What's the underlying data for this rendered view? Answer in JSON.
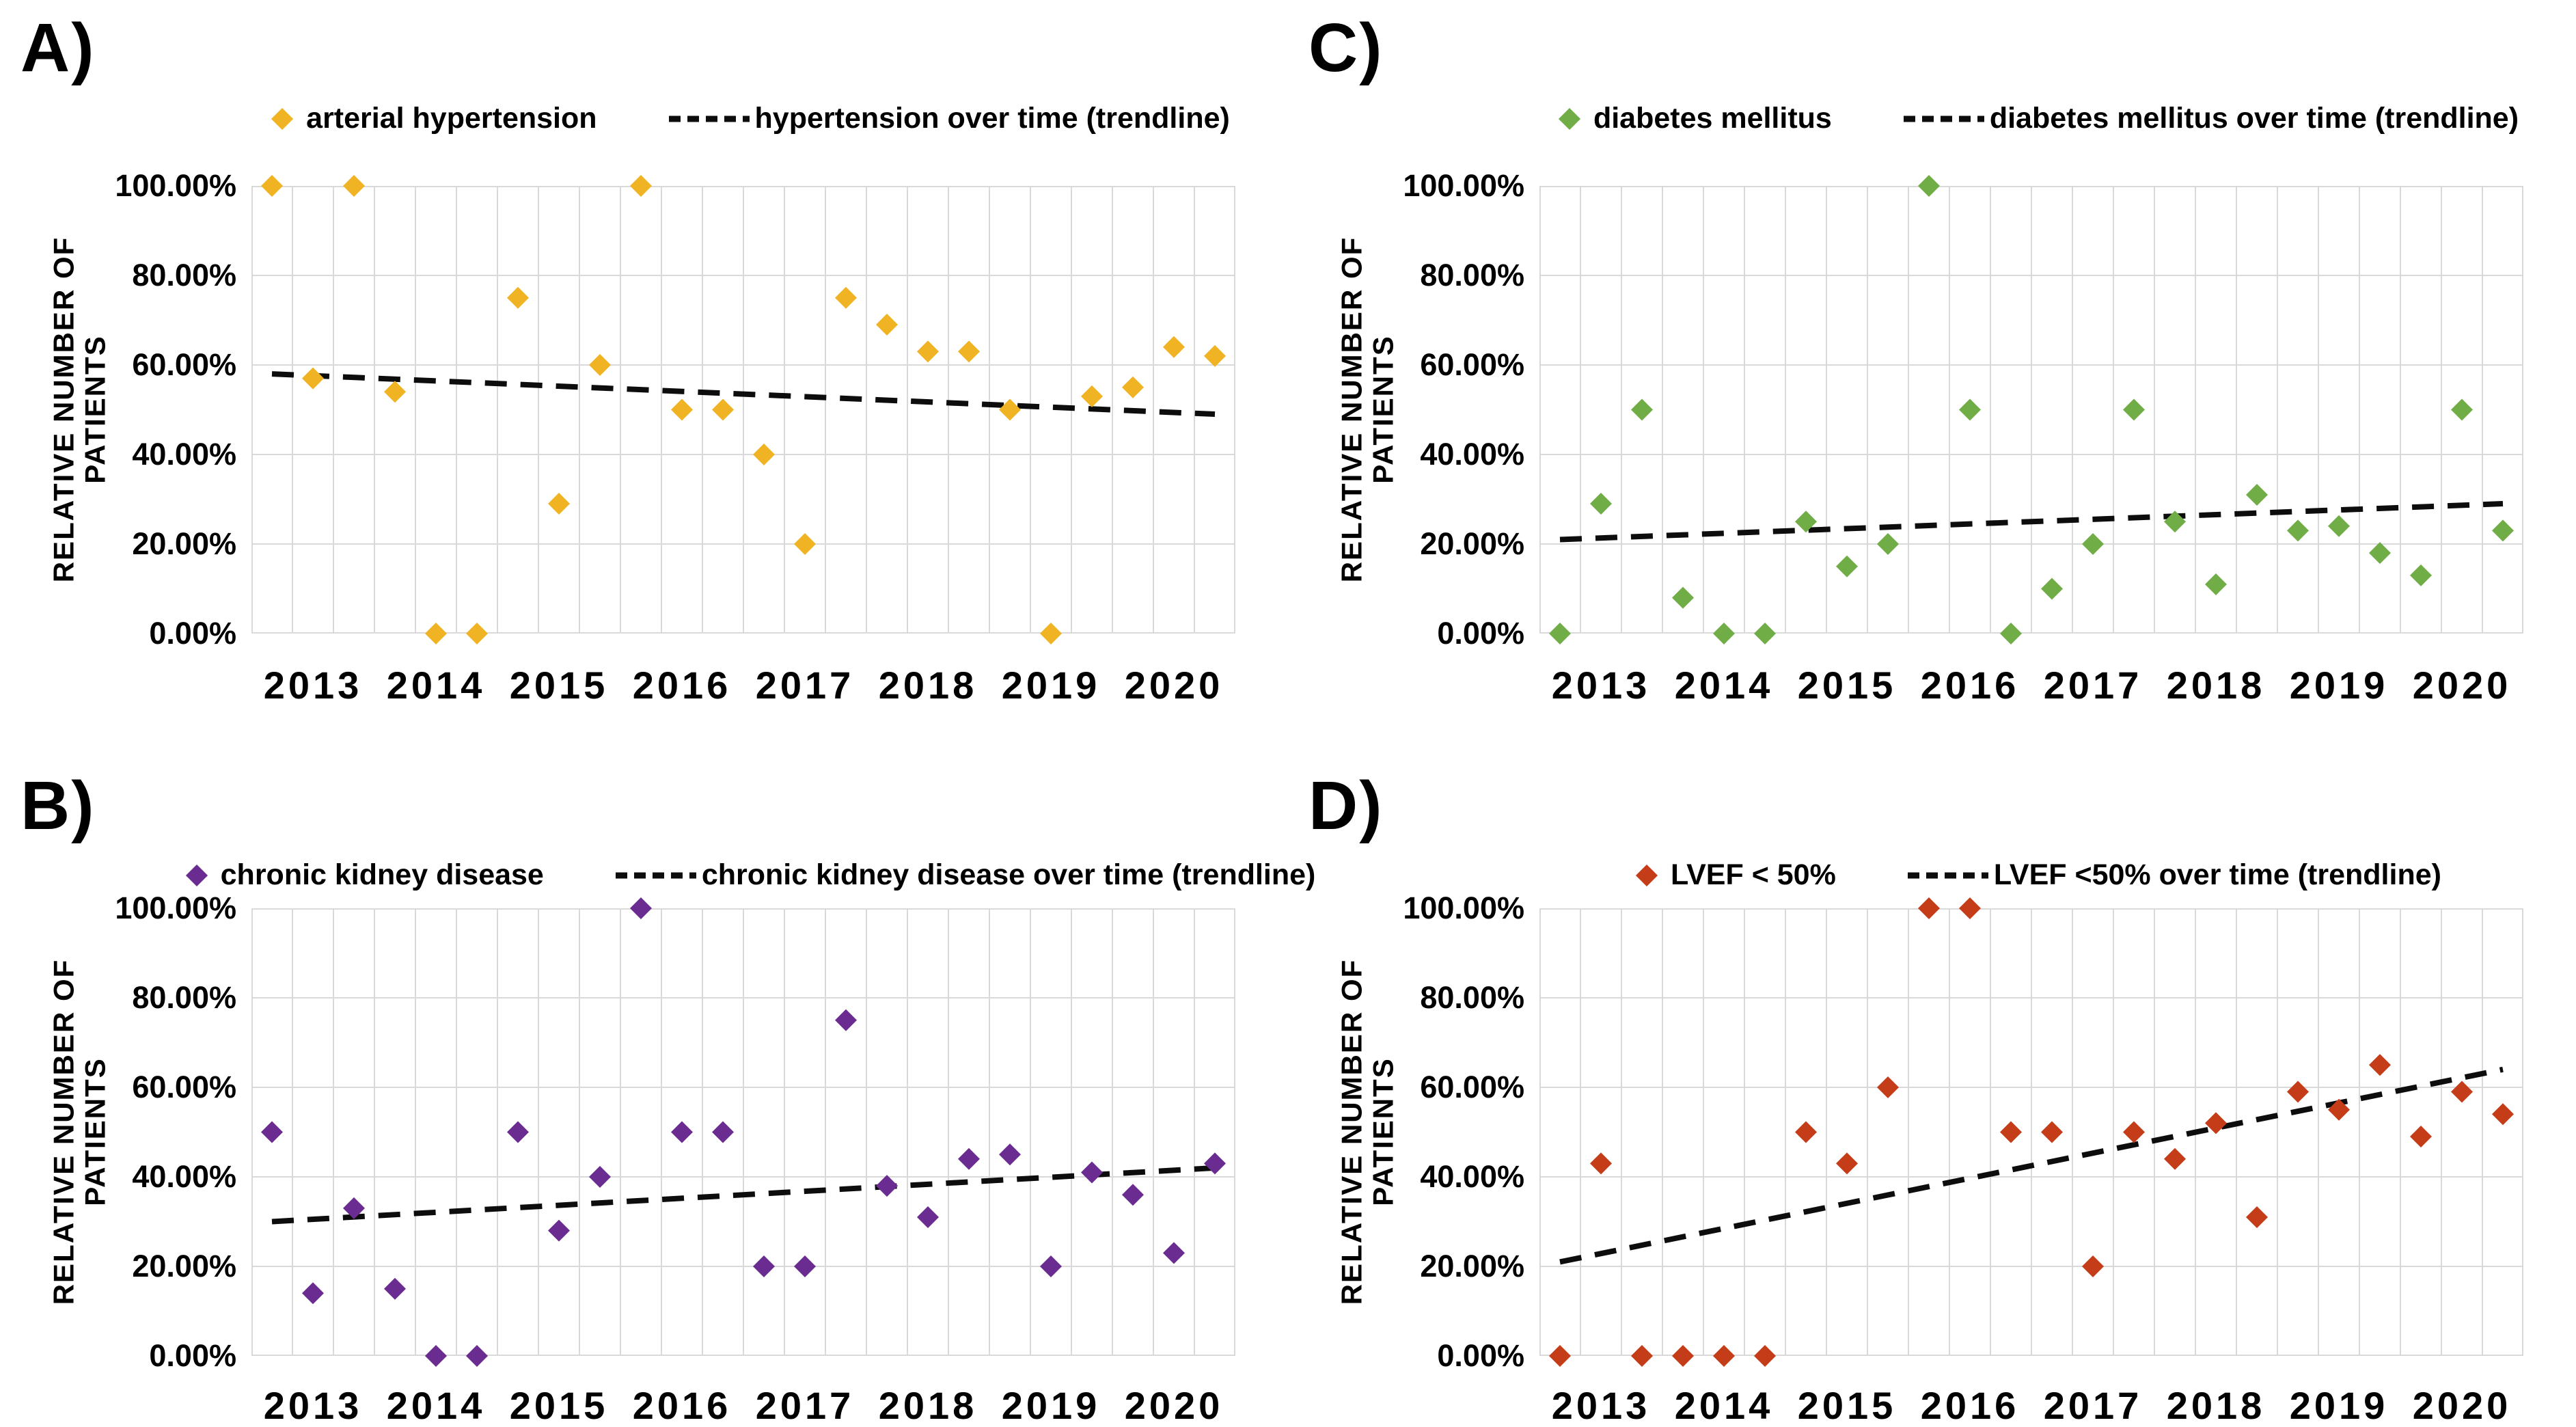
{
  "figure": {
    "background": "#FFFFFF",
    "grid_color": "#D9D9D9",
    "axis_text_color": "#000000",
    "trend_color": "#0D0D0D"
  },
  "chart_data": [
    {
      "panel_label": "A)",
      "position": "top-left",
      "type": "scatter",
      "series_name": "arterial hypertension",
      "marker_shape": "diamond",
      "marker_color": "#F0B323",
      "trendline_label": "hypertension over time (trendline)",
      "trendline_style": "dashed",
      "trendline_color": "#0D0D0D",
      "trendline_start_percent": 58,
      "trendline_end_percent": 49,
      "ylabel": "RELATIVE NUMBER OF PATIENTS",
      "ytick_labels": [
        "100.00%",
        "80.00%",
        "60.00%",
        "40.00%",
        "20.00%",
        "0.00%"
      ],
      "ylim_percent": [
        0,
        100
      ],
      "years": [
        "2013",
        "2014",
        "2015",
        "2016",
        "2017",
        "2018",
        "2019",
        "2020"
      ],
      "points_per_year": 3,
      "values_percent": [
        100,
        57,
        100,
        54,
        0,
        0,
        75,
        29,
        60,
        100,
        50,
        50,
        40,
        20,
        75,
        69,
        63,
        63,
        50,
        0,
        53,
        55,
        64,
        62
      ]
    },
    {
      "panel_label": "C)",
      "position": "top-right",
      "type": "scatter",
      "series_name": "diabetes mellitus",
      "marker_shape": "diamond",
      "marker_color": "#70AD47",
      "trendline_label": "diabetes mellitus over time (trendline)",
      "trendline_style": "dashed",
      "trendline_color": "#0D0D0D",
      "trendline_start_percent": 21,
      "trendline_end_percent": 29,
      "ylabel": "RELATIVE NUMBER OF PATIENTS",
      "ytick_labels": [
        "100.00%",
        "80.00%",
        "60.00%",
        "40.00%",
        "20.00%",
        "0.00%"
      ],
      "ylim_percent": [
        0,
        100
      ],
      "years": [
        "2013",
        "2014",
        "2015",
        "2016",
        "2017",
        "2018",
        "2019",
        "2020"
      ],
      "points_per_year": 3,
      "values_percent": [
        0,
        29,
        50,
        8,
        0,
        0,
        25,
        15,
        20,
        100,
        50,
        0,
        10,
        20,
        50,
        25,
        11,
        31,
        23,
        24,
        18,
        13,
        50,
        23
      ]
    },
    {
      "panel_label": "B)",
      "position": "bottom-left",
      "type": "scatter",
      "series_name": "chronic kidney disease",
      "marker_shape": "diamond",
      "marker_color": "#6B2C91",
      "trendline_label": "chronic kidney disease over time (trendline)",
      "trendline_style": "dashed",
      "trendline_color": "#0D0D0D",
      "trendline_start_percent": 30,
      "trendline_end_percent": 42,
      "ylabel": "RELATIVE NUMBER OF PATIENTS",
      "ytick_labels": [
        "100.00%",
        "80.00%",
        "60.00%",
        "40.00%",
        "20.00%",
        "0.00%"
      ],
      "ylim_percent": [
        0,
        100
      ],
      "years": [
        "2013",
        "2014",
        "2015",
        "2016",
        "2017",
        "2018",
        "2019",
        "2020"
      ],
      "points_per_year": 3,
      "values_percent": [
        50,
        14,
        33,
        15,
        0,
        0,
        50,
        28,
        40,
        100,
        50,
        50,
        20,
        20,
        75,
        38,
        31,
        44,
        45,
        20,
        41,
        36,
        23,
        43
      ]
    },
    {
      "panel_label": "D)",
      "position": "bottom-right",
      "type": "scatter",
      "series_name": "LVEF < 50%",
      "marker_shape": "diamond",
      "marker_color": "#C43C18",
      "trendline_label": "LVEF <50% over time (trendline)",
      "trendline_style": "dashed",
      "trendline_color": "#0D0D0D",
      "trendline_start_percent": 21,
      "trendline_end_percent": 64,
      "ylabel": "RELATIVE NUMBER OF PATIENTS",
      "ytick_labels": [
        "100.00%",
        "80.00%",
        "60.00%",
        "40.00%",
        "20.00%",
        "0.00%"
      ],
      "ylim_percent": [
        0,
        100
      ],
      "years": [
        "2013",
        "2014",
        "2015",
        "2016",
        "2017",
        "2018",
        "2019",
        "2020"
      ],
      "points_per_year": 3,
      "values_percent": [
        0,
        43,
        0,
        0,
        0,
        0,
        50,
        43,
        60,
        100,
        100,
        50,
        50,
        20,
        50,
        44,
        52,
        31,
        59,
        55,
        65,
        49,
        59,
        54
      ]
    }
  ]
}
